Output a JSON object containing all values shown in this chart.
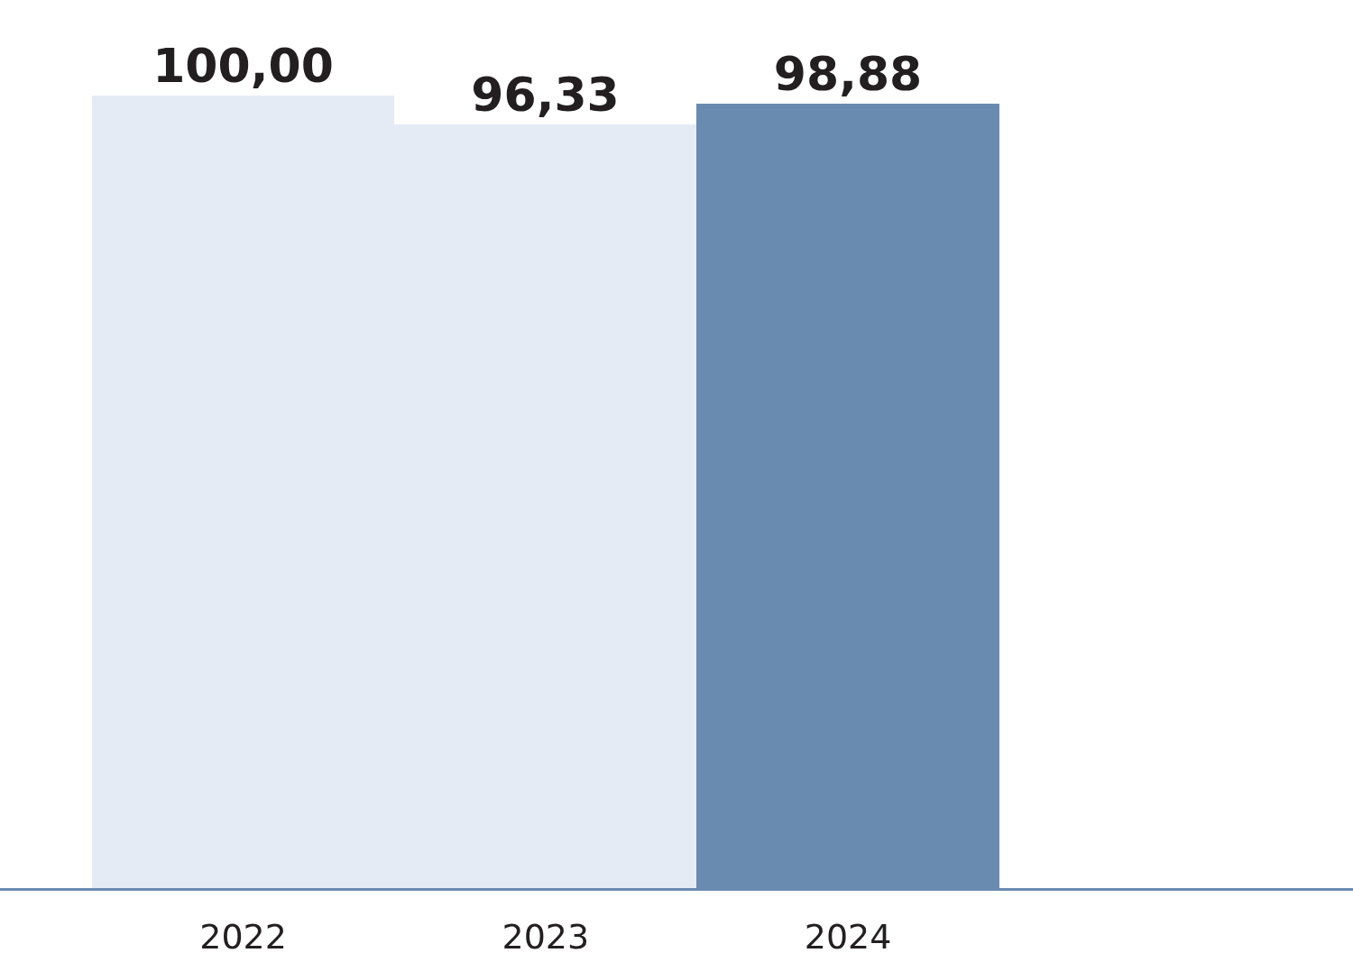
{
  "chart_data": {
    "type": "bar",
    "categories": [
      "2022",
      "2023",
      "2024"
    ],
    "values": [
      100,
      96.33,
      98.88
    ],
    "value_labels": [
      "100,00",
      "96,33",
      "98,88"
    ],
    "colors": [
      "#e4ebf5",
      "#e4ebf5",
      "#6a8bb0"
    ],
    "tick_labels": "x"
  }
}
